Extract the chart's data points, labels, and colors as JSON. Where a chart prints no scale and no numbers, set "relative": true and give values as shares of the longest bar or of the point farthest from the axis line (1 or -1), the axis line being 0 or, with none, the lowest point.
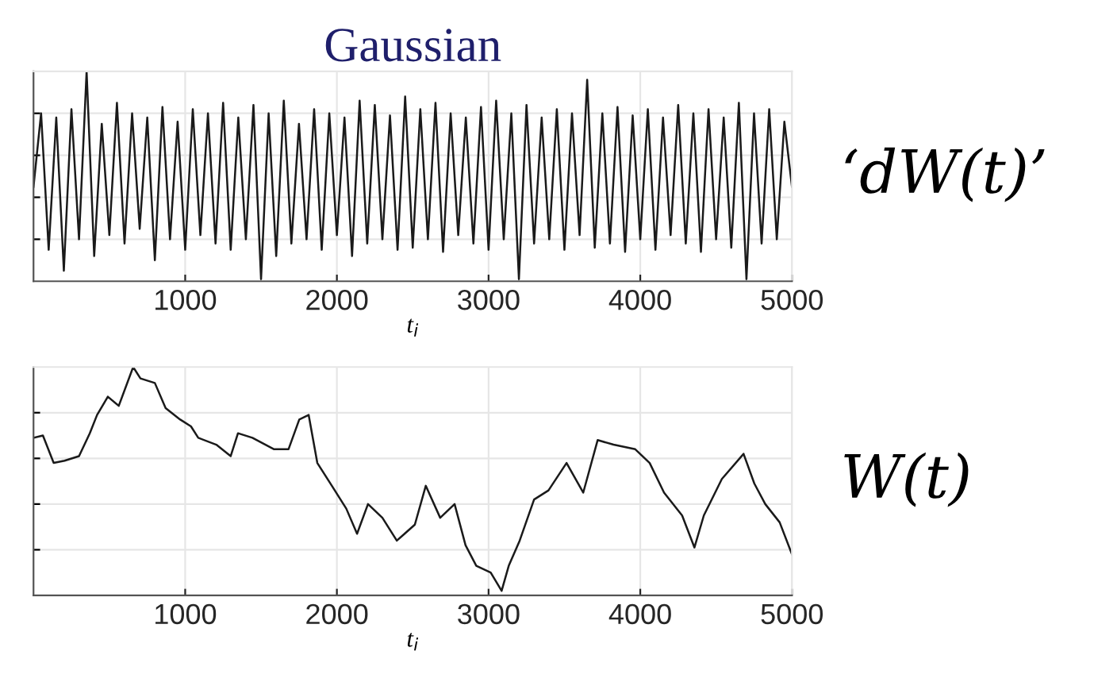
{
  "chart_data": [
    {
      "type": "line",
      "title": "Gaussian",
      "xlabel": "t$_{i}$",
      "ylabel": "‘dW(t)’",
      "relative": true,
      "grid": true,
      "tick_labels": "x",
      "xlim": [
        0,
        5000
      ],
      "xticks": [
        1000,
        2000,
        3000,
        4000,
        5000
      ],
      "series": [
        {
          "color": "#1a1a1a",
          "x": [
            0,
            50,
            100,
            150,
            200,
            250,
            300,
            350,
            400,
            450,
            500,
            550,
            600,
            650,
            700,
            750,
            800,
            850,
            900,
            950,
            1000,
            1050,
            1100,
            1150,
            1200,
            1250,
            1300,
            1350,
            1400,
            1450,
            1500,
            1550,
            1600,
            1650,
            1700,
            1750,
            1800,
            1850,
            1900,
            1950,
            2000,
            2050,
            2100,
            2150,
            2200,
            2250,
            2300,
            2350,
            2400,
            2450,
            2500,
            2550,
            2600,
            2650,
            2700,
            2750,
            2800,
            2850,
            2900,
            2950,
            3000,
            3050,
            3100,
            3150,
            3200,
            3250,
            3300,
            3350,
            3400,
            3450,
            3500,
            3550,
            3600,
            3650,
            3700,
            3750,
            3800,
            3850,
            3900,
            3950,
            4000,
            4050,
            4100,
            4150,
            4200,
            4250,
            4300,
            4350,
            4400,
            4450,
            4500,
            4550,
            4600,
            4650,
            4700,
            4750,
            4800,
            4850,
            4900,
            4950,
            5000
          ],
          "values": [
            0.45,
            0.8,
            0.15,
            0.78,
            0.05,
            0.82,
            0.2,
            1.0,
            0.12,
            0.75,
            0.22,
            0.85,
            0.18,
            0.8,
            0.25,
            0.78,
            0.1,
            0.83,
            0.2,
            0.76,
            0.15,
            0.82,
            0.22,
            0.8,
            0.18,
            0.85,
            0.15,
            0.78,
            0.2,
            0.84,
            0.01,
            0.8,
            0.12,
            0.86,
            0.18,
            0.75,
            0.2,
            0.82,
            0.15,
            0.8,
            0.22,
            0.78,
            0.12,
            0.86,
            0.18,
            0.84,
            0.2,
            0.79,
            0.15,
            0.88,
            0.16,
            0.82,
            0.2,
            0.85,
            0.14,
            0.8,
            0.22,
            0.78,
            0.18,
            0.83,
            0.15,
            0.86,
            0.2,
            0.8,
            0.01,
            0.84,
            0.18,
            0.78,
            0.2,
            0.82,
            0.15,
            0.8,
            0.22,
            0.96,
            0.16,
            0.8,
            0.18,
            0.83,
            0.14,
            0.79,
            0.2,
            0.82,
            0.15,
            0.78,
            0.22,
            0.84,
            0.18,
            0.8,
            0.14,
            0.82,
            0.2,
            0.78,
            0.16,
            0.85,
            0.01,
            0.8,
            0.18,
            0.82,
            0.2,
            0.76,
            0.45
          ]
        }
      ]
    },
    {
      "type": "line",
      "xlabel": "t$_{i}$",
      "ylabel": "W(t)",
      "relative": true,
      "grid": true,
      "tick_labels": "x",
      "xlim": [
        0,
        5000
      ],
      "xticks": [
        1000,
        2000,
        3000,
        4000,
        5000
      ],
      "series": [
        {
          "color": "#1a1a1a",
          "x": [
            0,
            62,
            133,
            205,
            300,
            371,
            419,
            490,
            562,
            657,
            705,
            800,
            871,
            967,
            1038,
            1086,
            1205,
            1300,
            1348,
            1443,
            1586,
            1681,
            1752,
            1814,
            1871,
            1967,
            2062,
            2133,
            2205,
            2300,
            2395,
            2514,
            2586,
            2681,
            2776,
            2848,
            2919,
            3014,
            3086,
            3133,
            3205,
            3300,
            3395,
            3514,
            3624,
            3719,
            3824,
            3967,
            4062,
            4157,
            4276,
            4357,
            4419,
            4538,
            4681,
            4752,
            4824,
            4919,
            5000
          ],
          "values": [
            0.69,
            0.7,
            0.58,
            0.59,
            0.61,
            0.71,
            0.79,
            0.87,
            0.83,
            1.0,
            0.95,
            0.93,
            0.82,
            0.77,
            0.74,
            0.69,
            0.66,
            0.61,
            0.71,
            0.69,
            0.64,
            0.64,
            0.77,
            0.79,
            0.58,
            0.48,
            0.38,
            0.27,
            0.4,
            0.34,
            0.24,
            0.31,
            0.48,
            0.34,
            0.4,
            0.22,
            0.13,
            0.1,
            0.02,
            0.13,
            0.24,
            0.42,
            0.46,
            0.58,
            0.45,
            0.68,
            0.66,
            0.64,
            0.58,
            0.45,
            0.35,
            0.21,
            0.35,
            0.51,
            0.62,
            0.49,
            0.4,
            0.32,
            0.18
          ]
        }
      ]
    }
  ]
}
